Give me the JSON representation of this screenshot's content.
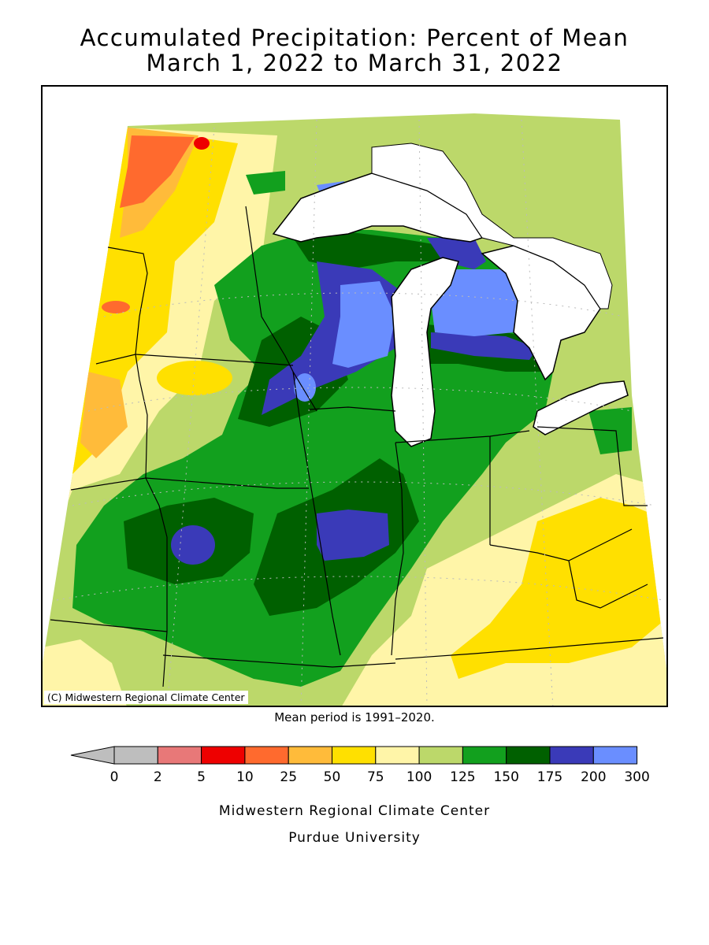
{
  "title_line1": "Accumulated Precipitation: Percent of Mean",
  "title_line2": "March 1, 2022 to March 31, 2022",
  "credit": "(C) Midwestern Regional Climate Center",
  "mean_period": "Mean period is 1991–2020.",
  "footer_line1": "Midwestern Regional Climate Center",
  "footer_line2": "Purdue University",
  "legend": {
    "ticks": [
      "0",
      "2",
      "5",
      "10",
      "25",
      "50",
      "75",
      "100",
      "125",
      "150",
      "175",
      "200",
      "300"
    ],
    "colors": [
      "#bebebe",
      "#e87878",
      "#ee0000",
      "#ff6a2e",
      "#ffbb3a",
      "#ffe000",
      "#fff5a8",
      "#bcd86a",
      "#12a01e",
      "#006000",
      "#3a3ab8",
      "#6a8eff"
    ],
    "below_min_color": "#bebebe"
  },
  "palette": {
    "orange_red": "#ff6a2e",
    "orange": "#ffbb3a",
    "yellow": "#ffe000",
    "light_yellow": "#fff5a8",
    "light_green": "#bcd86a",
    "green": "#12a01e",
    "dark_green": "#006000",
    "blue": "#3a3ab8",
    "light_blue": "#6a8eff",
    "red": "#ee0000",
    "water": "#ffffff"
  }
}
